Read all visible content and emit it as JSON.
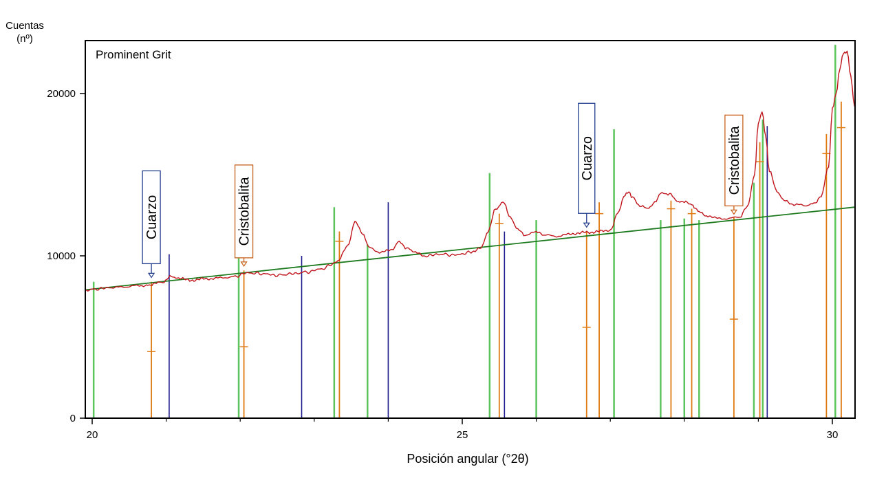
{
  "chart_data": {
    "type": "line",
    "title": "Prominent Grit",
    "xlabel": "Posición angular (°2θ)",
    "ylabel_lines": [
      "Cuentas",
      "(nº)"
    ],
    "xlim": [
      19.9,
      30.3
    ],
    "ylim": [
      0,
      23000
    ],
    "xticks": [
      20,
      25,
      30
    ],
    "yticks": [
      0,
      10000,
      20000
    ],
    "minor_xticks": [
      21,
      22,
      23,
      24,
      26,
      27,
      28,
      29
    ],
    "colors": {
      "pattern": "#c0141b",
      "background": "#1e7a1e",
      "green_phase": "#5cc45c",
      "quartz": "#1c1c8c",
      "cristobalite": "#e07a12",
      "quartz_box": "#1f3c8c",
      "cristobalite_box": "#c8601a"
    },
    "series": [
      {
        "role": "diffractogram",
        "x": [
          19.9,
          20.3,
          20.6,
          20.75,
          20.85,
          20.95,
          21.05,
          21.15,
          21.3,
          21.6,
          21.9,
          22.1,
          22.3,
          22.5,
          22.7,
          22.9,
          23.1,
          23.3,
          23.45,
          23.55,
          23.65,
          23.75,
          23.9,
          24.05,
          24.15,
          24.25,
          24.35,
          24.5,
          24.7,
          24.9,
          25.1,
          25.25,
          25.35,
          25.45,
          25.55,
          25.65,
          25.75,
          25.85,
          26.0,
          26.1,
          26.25,
          26.4,
          26.55,
          26.7,
          26.85,
          27.0,
          27.1,
          27.2,
          27.25,
          27.3,
          27.4,
          27.5,
          27.6,
          27.7,
          27.8,
          27.9,
          28.0,
          28.1,
          28.15,
          28.2,
          28.3,
          28.45,
          28.6,
          28.75,
          28.85,
          28.95,
          29.0,
          29.05,
          29.1,
          29.15,
          29.25,
          29.35,
          29.5,
          29.65,
          29.75,
          29.85,
          29.95,
          30.0,
          30.05,
          30.1,
          30.15,
          30.2,
          30.25,
          30.3
        ],
        "y": [
          7900,
          8050,
          8150,
          8200,
          8300,
          8380,
          8700,
          8650,
          8500,
          8600,
          8700,
          8950,
          8900,
          8800,
          8900,
          9000,
          9200,
          9600,
          10600,
          12100,
          11400,
          10500,
          10200,
          10400,
          10850,
          10500,
          10200,
          10000,
          10100,
          10050,
          10200,
          10500,
          11500,
          12900,
          13300,
          12400,
          11600,
          11300,
          11450,
          11300,
          11200,
          11300,
          11400,
          11450,
          11500,
          11600,
          12600,
          13800,
          13900,
          13600,
          13100,
          12900,
          13300,
          13900,
          13800,
          13400,
          13300,
          13200,
          12900,
          12700,
          12500,
          12300,
          12300,
          12400,
          13000,
          15000,
          18200,
          18900,
          17300,
          15200,
          14000,
          13400,
          13150,
          13100,
          13200,
          13700,
          15500,
          19000,
          20000,
          21500,
          22500,
          22600,
          21000,
          19200
        ]
      },
      {
        "role": "background",
        "x": [
          19.9,
          30.3
        ],
        "y": [
          7900,
          13000
        ]
      }
    ],
    "reference_lines": {
      "green": [
        {
          "x": 20.02,
          "y": 8400
        },
        {
          "x": 21.98,
          "y": 10600
        },
        {
          "x": 23.27,
          "y": 13000
        },
        {
          "x": 23.72,
          "y": 10700
        },
        {
          "x": 25.37,
          "y": 15100
        },
        {
          "x": 26.0,
          "y": 12200
        },
        {
          "x": 27.05,
          "y": 17800
        },
        {
          "x": 27.68,
          "y": 12200
        },
        {
          "x": 28.0,
          "y": 12300
        },
        {
          "x": 28.2,
          "y": 12200
        },
        {
          "x": 28.94,
          "y": 14500
        },
        {
          "x": 29.06,
          "y": 18400
        },
        {
          "x": 30.04,
          "y": 23000
        }
      ],
      "quartz": [
        {
          "x": 21.04,
          "y": 10100
        },
        {
          "x": 22.83,
          "y": 10000
        },
        {
          "x": 24.0,
          "y": 13300
        },
        {
          "x": 25.57,
          "y": 11500
        },
        {
          "x": 29.12,
          "y": 18000
        }
      ],
      "cristobalite": [
        {
          "x": 20.8,
          "y": 8400,
          "mark": 4100
        },
        {
          "x": 22.05,
          "y": 9100,
          "mark": 4400
        },
        {
          "x": 23.34,
          "y": 11500,
          "mark": 10900
        },
        {
          "x": 25.5,
          "y": 12600,
          "mark": 12000
        },
        {
          "x": 26.68,
          "y": 11500,
          "mark": 5600
        },
        {
          "x": 26.85,
          "y": 13300,
          "mark": 12600
        },
        {
          "x": 27.82,
          "y": 13400,
          "mark": 12900
        },
        {
          "x": 28.1,
          "y": 12900,
          "mark": 12600
        },
        {
          "x": 28.67,
          "y": 12400,
          "mark": 6100
        },
        {
          "x": 29.02,
          "y": 17000,
          "mark": 15800
        },
        {
          "x": 29.92,
          "y": 17500,
          "mark": 16300
        },
        {
          "x": 30.12,
          "y": 19500,
          "mark": 17900
        }
      ]
    },
    "annotations": [
      {
        "label": "Cuarzo",
        "phase": "quartz",
        "x": 20.8,
        "y": 8500
      },
      {
        "label": "Cristobalita",
        "phase": "cristobalite",
        "x": 22.05,
        "y": 9200
      },
      {
        "label": "Cuarzo",
        "phase": "quartz",
        "x": 26.68,
        "y": 11600
      },
      {
        "label": "Cristobalita",
        "phase": "cristobalite",
        "x": 28.67,
        "y": 12400
      }
    ]
  }
}
